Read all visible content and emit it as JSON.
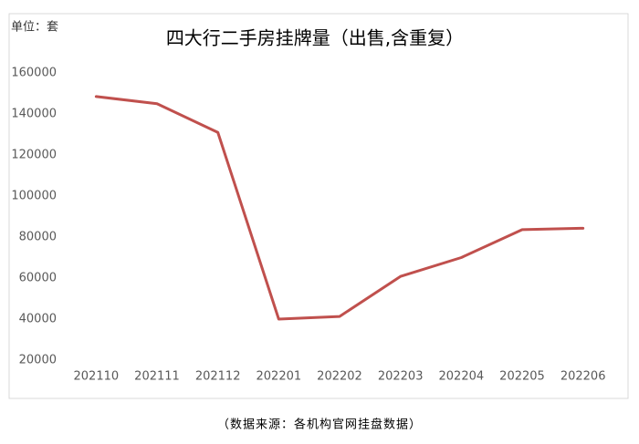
{
  "chart_data": {
    "type": "line",
    "title": "四大行二手房挂牌量（出售,含重复）",
    "unit_label": "单位：套",
    "source": "（数据来源：各机构官网挂盘数据）",
    "categories": [
      "202110",
      "202111",
      "202112",
      "202201",
      "202202",
      "202203",
      "202204",
      "202205",
      "202206"
    ],
    "series": [
      {
        "color": "#c0504d",
        "values": [
          148500,
          145000,
          131000,
          40000,
          41300,
          60800,
          70000,
          83600,
          84300
        ]
      }
    ],
    "ylim": [
      20000,
      160000
    ],
    "yticks": [
      20000,
      40000,
      60000,
      80000,
      100000,
      120000,
      140000,
      160000
    ],
    "grid": false
  }
}
